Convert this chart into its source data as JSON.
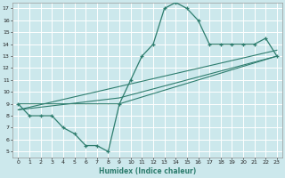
{
  "xlabel": "Humidex (Indice chaleur)",
  "xlim": [
    -0.5,
    23.5
  ],
  "ylim": [
    4.5,
    17.5
  ],
  "xticks": [
    0,
    1,
    2,
    3,
    4,
    5,
    6,
    7,
    8,
    9,
    10,
    11,
    12,
    13,
    14,
    15,
    16,
    17,
    18,
    19,
    20,
    21,
    22,
    23
  ],
  "yticks": [
    5,
    6,
    7,
    8,
    9,
    10,
    11,
    12,
    13,
    14,
    15,
    16,
    17
  ],
  "line_color": "#2e7d6e",
  "bg_color": "#cce8ec",
  "grid_color": "#ffffff",
  "line1_x": [
    0,
    1,
    2,
    3,
    4,
    5,
    6,
    7,
    8,
    9,
    10,
    11,
    12,
    13,
    14,
    15,
    16,
    17,
    18,
    19,
    20,
    21,
    22,
    23
  ],
  "line1_y": [
    9,
    8,
    8,
    8,
    7,
    6.5,
    5.5,
    5.5,
    5,
    9,
    11,
    13,
    14,
    17,
    17.5,
    17,
    16,
    14,
    14,
    14,
    14,
    14,
    14.5,
    13
  ],
  "line2_x": [
    0,
    9,
    23
  ],
  "line2_y": [
    9,
    9,
    13
  ],
  "line3_x": [
    0,
    23
  ],
  "line3_y": [
    8.5,
    13.5
  ],
  "line4_x": [
    0,
    9,
    23
  ],
  "line4_y": [
    8.5,
    9.5,
    13
  ]
}
